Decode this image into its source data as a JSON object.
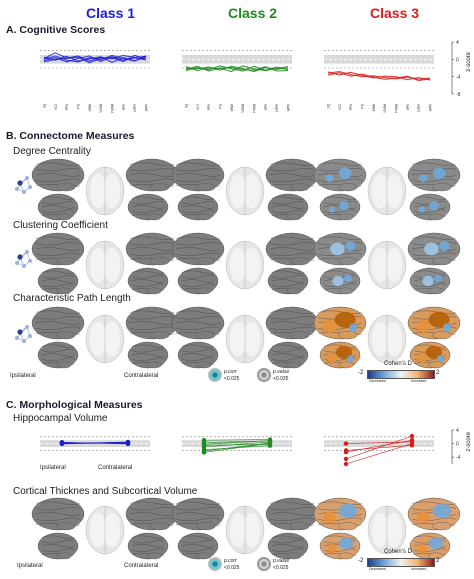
{
  "classes": [
    {
      "label": "Class 1",
      "color": "#1d1dd4"
    },
    {
      "label": "Class 2",
      "color": "#1f8a1f"
    },
    {
      "label": "Class 3",
      "color": "#d41d1d"
    }
  ],
  "sections": {
    "a": {
      "title": "A. Cognitive Scores"
    },
    "b": {
      "title": "B. Connectome Measures"
    },
    "c": {
      "title": "C. Morphological Measures"
    }
  },
  "connectome_rows": [
    {
      "label": "Degree  Centrality"
    },
    {
      "label": "Clustering Coefficient"
    },
    {
      "label": "Characteristic Path Length"
    }
  ],
  "morph_rows": [
    {
      "label": "Hippocampal Volume"
    },
    {
      "label": "Cortical Thicknes and Subcortical Volume"
    }
  ],
  "side_labels": {
    "ipsilateral": "Ipsilateral",
    "contralateral": "Contralateral"
  },
  "legend_pvalues": {
    "pcorr": "p.corr",
    "pcorr_thr": "<0.025",
    "pval": "p.value",
    "pval_thr": "<0.025"
  },
  "cohens_d": {
    "title": "Cohen's D",
    "min": "-2",
    "max": "2",
    "decreased": "Decreased",
    "increased": "Increased"
  },
  "zscore": {
    "label": "z-score",
    "ticks_a": [
      "4",
      "0",
      "-4",
      "-8"
    ],
    "ticks_c": [
      "4",
      "0",
      "-4"
    ]
  },
  "cognitive_tests": [
    "IQ",
    "VCI",
    "PRI",
    "PS",
    "WMI",
    "VWM",
    "FWM",
    "IPR",
    "DPR",
    "APR"
  ],
  "chart_data": [
    {
      "type": "line",
      "title": "Class 1",
      "x": [
        "IQ",
        "VCI",
        "PRI",
        "PS",
        "WMI",
        "VWM",
        "FWM",
        "IPR",
        "DPR",
        "APR"
      ],
      "series": [
        {
          "values": [
            0.2,
            1.5,
            0.3,
            0.8,
            -0.4,
            0.5,
            0.1,
            0.9,
            0.4,
            0.7
          ]
        },
        {
          "values": [
            -0.3,
            0.4,
            -0.6,
            0.2,
            0.8,
            -0.5,
            0.6,
            -0.2,
            0.3,
            -0.1
          ]
        },
        {
          "values": [
            0.5,
            -0.2,
            0.7,
            -0.4,
            0.1,
            0.6,
            -0.7,
            0.4,
            -0.3,
            0.5
          ]
        },
        {
          "values": [
            -0.6,
            0.0,
            0.2,
            0.5,
            -0.8,
            0.2,
            0.4,
            -0.5,
            0.9,
            0.0
          ]
        },
        {
          "values": [
            0.0,
            0.8,
            -0.2,
            -0.6,
            0.4,
            -0.1,
            0.9,
            0.2,
            -0.4,
            0.8
          ]
        }
      ],
      "ylim": [
        -8,
        4
      ]
    },
    {
      "type": "line",
      "title": "Class 2",
      "x": [
        "IQ",
        "VCI",
        "PRI",
        "PS",
        "WMI",
        "VWM",
        "FWM",
        "IPR",
        "DPR",
        "APR"
      ],
      "series": [
        {
          "values": [
            -2.0,
            -2.2,
            -1.8,
            -2.5,
            -1.6,
            -2.1,
            -2.8,
            -1.9,
            -2.3,
            -2.0
          ]
        },
        {
          "values": [
            -2.6,
            -1.9,
            -2.4,
            -1.5,
            -2.2,
            -2.7,
            -1.6,
            -2.5,
            -1.8,
            -2.4
          ]
        },
        {
          "values": [
            -1.7,
            -2.6,
            -2.0,
            -2.1,
            -2.8,
            -1.5,
            -2.2,
            -2.6,
            -2.1,
            -1.7
          ]
        },
        {
          "values": [
            -2.3,
            -1.6,
            -2.7,
            -2.0,
            -1.9,
            -2.4,
            -2.5,
            -1.7,
            -2.7,
            -2.6
          ]
        }
      ],
      "ylim": [
        -8,
        4
      ]
    },
    {
      "type": "line",
      "title": "Class 3",
      "x": [
        "IQ",
        "VCI",
        "PRI",
        "PS",
        "WMI",
        "VWM",
        "FWM",
        "IPR",
        "DPR",
        "APR"
      ],
      "series": [
        {
          "values": [
            -3.2,
            -2.8,
            -3.5,
            -4.0,
            -3.8,
            -4.2,
            -4.5,
            -4.1,
            -4.6,
            -4.3
          ]
        },
        {
          "values": [
            -2.9,
            -3.6,
            -3.0,
            -3.7,
            -4.3,
            -3.9,
            -4.0,
            -4.7,
            -4.2,
            -4.8
          ]
        },
        {
          "values": [
            -3.6,
            -3.1,
            -3.9,
            -3.4,
            -4.1,
            -4.6,
            -4.3,
            -3.9,
            -4.9,
            -4.5
          ]
        }
      ],
      "ylim": [
        -8,
        4
      ]
    },
    {
      "type": "scatter",
      "title": "Hippocampal Volume Class 1",
      "x": [
        "Ipsilateral",
        "Contralateral"
      ],
      "series": [
        {
          "values": [
            0.2,
            0.3
          ]
        },
        {
          "values": [
            0.0,
            0.1
          ]
        },
        {
          "values": [
            0.4,
            -0.1
          ]
        },
        {
          "values": [
            -0.1,
            0.5
          ]
        },
        {
          "values": [
            0.1,
            0.2
          ]
        },
        {
          "values": [
            0.3,
            0.0
          ]
        }
      ],
      "ylim": [
        -6,
        4
      ]
    },
    {
      "type": "scatter",
      "title": "Hippocampal Volume Class 2",
      "x": [
        "Ipsilateral",
        "Contralateral"
      ],
      "series": [
        {
          "values": [
            -2.2,
            0.2
          ]
        },
        {
          "values": [
            -1.0,
            0.5
          ]
        },
        {
          "values": [
            -0.5,
            -0.2
          ]
        },
        {
          "values": [
            0.3,
            0.8
          ]
        },
        {
          "values": [
            -1.8,
            -0.6
          ]
        },
        {
          "values": [
            -2.6,
            0.1
          ]
        },
        {
          "values": [
            1.0,
            1.2
          ]
        },
        {
          "values": [
            -0.2,
            0.9
          ]
        }
      ],
      "ylim": [
        -6,
        4
      ]
    },
    {
      "type": "scatter",
      "title": "Hippocampal Volume Class 3",
      "x": [
        "Ipsilateral",
        "Contralateral"
      ],
      "series": [
        {
          "values": [
            -4.5,
            2.2
          ]
        },
        {
          "values": [
            -2.5,
            1.0
          ]
        },
        {
          "values": [
            0.0,
            0.5
          ]
        },
        {
          "values": [
            -2.0,
            -0.5
          ]
        },
        {
          "values": [
            -6.0,
            0.0
          ]
        }
      ],
      "ylim": [
        -6,
        4
      ]
    }
  ]
}
